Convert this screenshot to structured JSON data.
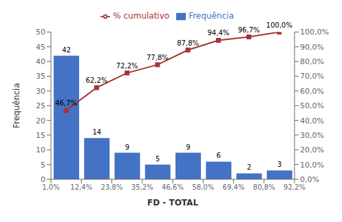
{
  "chart_data": {
    "type": "histogram",
    "xlabel": "FD - TOTAL",
    "ylabel": "Frequência",
    "bins": [
      {
        "value": 1.0,
        "label": "1,0%"
      },
      {
        "value": 12.4,
        "label": "12,4%"
      },
      {
        "value": 23.8,
        "label": "23,8%"
      },
      {
        "value": 35.2,
        "label": "35,2%"
      },
      {
        "value": 46.6,
        "label": "46,6%"
      },
      {
        "value": 58.0,
        "label": "58,0%"
      },
      {
        "value": 69.4,
        "label": "69,4%"
      },
      {
        "value": 80.8,
        "label": "80,8%"
      },
      {
        "value": 92.2,
        "label": "92,2%"
      }
    ],
    "series": [
      {
        "name": "Frequência",
        "type": "bar",
        "color": "#4472C4",
        "values": [
          42,
          14,
          9,
          5,
          9,
          6,
          2,
          3
        ]
      },
      {
        "name": "% cumulativo",
        "type": "line",
        "axis": "y2",
        "color": "#A83232",
        "marker": "square",
        "values": [
          46.7,
          62.2,
          72.2,
          77.8,
          87.8,
          94.4,
          96.7,
          100.0
        ],
        "value_labels": [
          "46,7%",
          "62,2%",
          "72,2%",
          "77,8%",
          "87,8%",
          "94,4%",
          "96,7%",
          "100,0%"
        ]
      }
    ],
    "ylim": [
      0,
      50
    ],
    "yticks": [
      0,
      5,
      10,
      15,
      20,
      25,
      30,
      35,
      40,
      45,
      50
    ],
    "y2lim": [
      0,
      100
    ],
    "y2ticks": [
      {
        "value": 0,
        "label": "0,0%"
      },
      {
        "value": 10,
        "label": "10,0%"
      },
      {
        "value": 20,
        "label": "20,0%"
      },
      {
        "value": 30,
        "label": "30,0%"
      },
      {
        "value": 40,
        "label": "40,0%"
      },
      {
        "value": 50,
        "label": "50,0%"
      },
      {
        "value": 60,
        "label": "60,0%"
      },
      {
        "value": 70,
        "label": "70,0%"
      },
      {
        "value": 80,
        "label": "80,0%"
      },
      {
        "value": 90,
        "label": "90,0%"
      },
      {
        "value": 100,
        "label": "100,0%"
      }
    ],
    "data_labels": true,
    "grid": false,
    "legend": "top"
  }
}
